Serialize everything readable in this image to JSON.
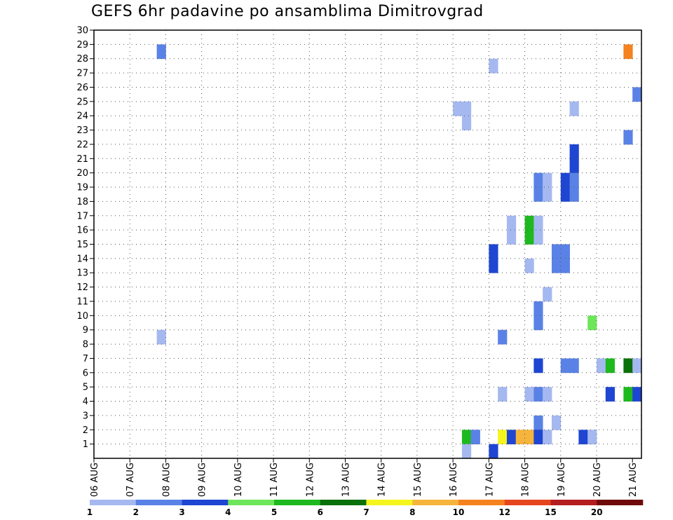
{
  "chart_data": {
    "type": "heatmap",
    "title": "GEFS 6hr padavine po ansamblima Dimitrovgrad",
    "xlabel": "",
    "ylabel": "",
    "x_tick_labels": [
      "06 AUG",
      "07 AUG",
      "08 AUG",
      "09 AUG",
      "10 AUG",
      "11 AUG",
      "12 AUG",
      "13 AUG",
      "14 AUG",
      "15 AUG",
      "16 AUG",
      "17 AUG",
      "18 AUG",
      "19 AUG",
      "20 AUG",
      "21 AUG"
    ],
    "y_tick_labels": [
      "1",
      "2",
      "3",
      "4",
      "5",
      "6",
      "7",
      "8",
      "9",
      "10",
      "11",
      "12",
      "13",
      "14",
      "15",
      "16",
      "17",
      "18",
      "19",
      "20",
      "21",
      "22",
      "23",
      "24",
      "25",
      "26",
      "27",
      "28",
      "29",
      "30"
    ],
    "xlim": [
      0,
      61
    ],
    "ylim": [
      0,
      30
    ],
    "grid": true,
    "colorbar": {
      "labels": [
        "1",
        "2",
        "3",
        "4",
        "5",
        "6",
        "7",
        "8",
        "10",
        "12",
        "15",
        "20"
      ],
      "colors": [
        "#a5b9f0",
        "#5a82e6",
        "#1e46d2",
        "#6ee65a",
        "#1eb91e",
        "#0a700a",
        "#f5f51e",
        "#f5b43c",
        "#f5821e",
        "#e6461e",
        "#b41e1e",
        "#6e0a0a"
      ]
    },
    "cells": [
      {
        "t": 7,
        "m": 29,
        "c": 1
      },
      {
        "t": 7,
        "m": 9,
        "c": 0
      },
      {
        "t": 40,
        "m": 25,
        "c": 0
      },
      {
        "t": 41,
        "m": 25,
        "c": 0
      },
      {
        "t": 41,
        "m": 24,
        "c": 0
      },
      {
        "t": 41,
        "m": 2,
        "c": 4
      },
      {
        "t": 41,
        "m": 1,
        "c": 0
      },
      {
        "t": 42,
        "m": 2,
        "c": 1
      },
      {
        "t": 44,
        "m": 28,
        "c": 0
      },
      {
        "t": 44,
        "m": 15,
        "c": 2
      },
      {
        "t": 44,
        "m": 14,
        "c": 2
      },
      {
        "t": 44,
        "m": 1,
        "c": 2
      },
      {
        "t": 45,
        "m": 9,
        "c": 1
      },
      {
        "t": 45,
        "m": 5,
        "c": 0
      },
      {
        "t": 45,
        "m": 2,
        "c": 6
      },
      {
        "t": 46,
        "m": 17,
        "c": 0
      },
      {
        "t": 46,
        "m": 16,
        "c": 0
      },
      {
        "t": 46,
        "m": 2,
        "c": 2
      },
      {
        "t": 47,
        "m": 2,
        "c": 7
      },
      {
        "t": 48,
        "m": 2,
        "c": 7
      },
      {
        "t": 48,
        "m": 17,
        "c": 4
      },
      {
        "t": 48,
        "m": 16,
        "c": 4
      },
      {
        "t": 48,
        "m": 14,
        "c": 0
      },
      {
        "t": 48,
        "m": 5,
        "c": 0
      },
      {
        "t": 49,
        "m": 20,
        "c": 1
      },
      {
        "t": 49,
        "m": 19,
        "c": 1
      },
      {
        "t": 49,
        "m": 17,
        "c": 0
      },
      {
        "t": 49,
        "m": 16,
        "c": 0
      },
      {
        "t": 49,
        "m": 11,
        "c": 1
      },
      {
        "t": 49,
        "m": 10,
        "c": 1
      },
      {
        "t": 49,
        "m": 7,
        "c": 2
      },
      {
        "t": 49,
        "m": 5,
        "c": 1
      },
      {
        "t": 49,
        "m": 3,
        "c": 1
      },
      {
        "t": 49,
        "m": 2,
        "c": 2
      },
      {
        "t": 50,
        "m": 20,
        "c": 0
      },
      {
        "t": 50,
        "m": 19,
        "c": 0
      },
      {
        "t": 50,
        "m": 12,
        "c": 0
      },
      {
        "t": 50,
        "m": 5,
        "c": 0
      },
      {
        "t": 50,
        "m": 2,
        "c": 0
      },
      {
        "t": 51,
        "m": 15,
        "c": 1
      },
      {
        "t": 51,
        "m": 14,
        "c": 1
      },
      {
        "t": 51,
        "m": 3,
        "c": 0
      },
      {
        "t": 52,
        "m": 20,
        "c": 2
      },
      {
        "t": 52,
        "m": 19,
        "c": 2
      },
      {
        "t": 52,
        "m": 15,
        "c": 1
      },
      {
        "t": 52,
        "m": 14,
        "c": 1
      },
      {
        "t": 52,
        "m": 7,
        "c": 1
      },
      {
        "t": 53,
        "m": 25,
        "c": 0
      },
      {
        "t": 53,
        "m": 22,
        "c": 2
      },
      {
        "t": 53,
        "m": 21,
        "c": 2
      },
      {
        "t": 53,
        "m": 20,
        "c": 1
      },
      {
        "t": 53,
        "m": 19,
        "c": 1
      },
      {
        "t": 53,
        "m": 7,
        "c": 1
      },
      {
        "t": 54,
        "m": 2,
        "c": 2
      },
      {
        "t": 55,
        "m": 10,
        "c": 3
      },
      {
        "t": 55,
        "m": 2,
        "c": 0
      },
      {
        "t": 56,
        "m": 7,
        "c": 0
      },
      {
        "t": 57,
        "m": 7,
        "c": 4
      },
      {
        "t": 57,
        "m": 5,
        "c": 2
      },
      {
        "t": 59,
        "m": 29,
        "c": 8
      },
      {
        "t": 59,
        "m": 23,
        "c": 1
      },
      {
        "t": 59,
        "m": 7,
        "c": 5
      },
      {
        "t": 59,
        "m": 5,
        "c": 4
      },
      {
        "t": 60,
        "m": 26,
        "c": 1
      },
      {
        "t": 60,
        "m": 7,
        "c": 0
      },
      {
        "t": 60,
        "m": 5,
        "c": 2
      }
    ]
  }
}
